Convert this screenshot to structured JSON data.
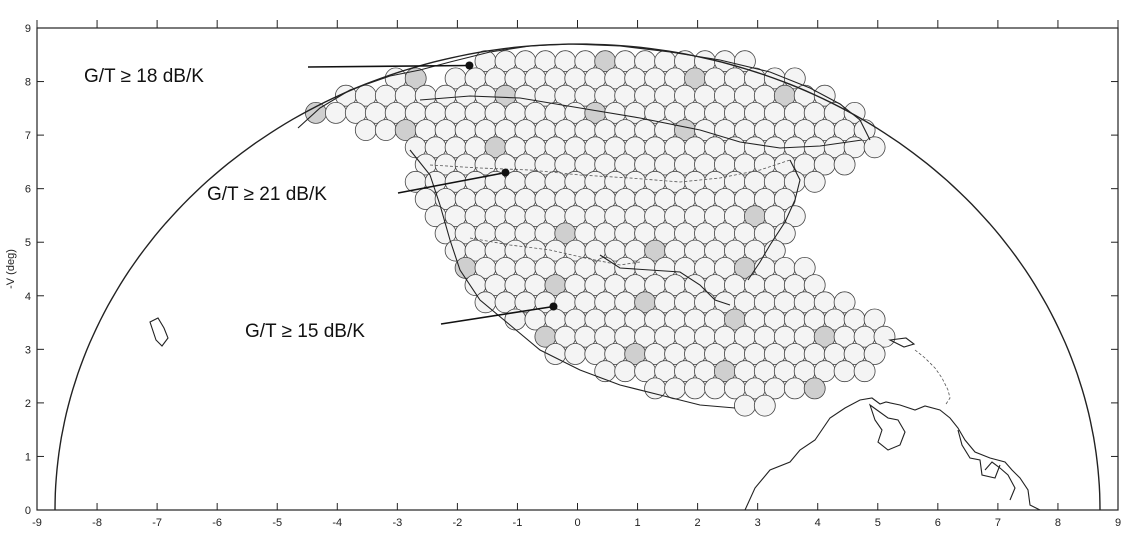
{
  "chart_data": {
    "type": "scatter",
    "title": "",
    "xlabel": "",
    "ylabel": "-V (deg)",
    "xlim": [
      -9,
      9
    ],
    "ylim": [
      0,
      9
    ],
    "x_ticks": [
      -9,
      -8,
      -7,
      -6,
      -5,
      -4,
      -3,
      -2,
      -1,
      0,
      1,
      2,
      3,
      4,
      5,
      6,
      7,
      8,
      9
    ],
    "y_ticks": [
      0,
      1,
      2,
      3,
      4,
      5,
      6,
      7,
      8,
      9
    ],
    "grid": false,
    "earth_disk_radius_deg": 8.7,
    "annotations": [
      {
        "text": "G/T ≥ 18 dB/K",
        "point": [
          -1.8,
          8.3
        ]
      },
      {
        "text": "G/T ≥ 21 dB/K",
        "point": [
          -1.2,
          6.3
        ]
      },
      {
        "text": "G/T ≥ 15 dB/K",
        "point": [
          -0.4,
          3.8
        ]
      }
    ]
  },
  "colors": {
    "beam_fill": "#f4f4f4",
    "beam_stroke": "#444444",
    "beam_shaded": "#cfcfcf",
    "axis": "#222222",
    "coastline": "#222222"
  }
}
